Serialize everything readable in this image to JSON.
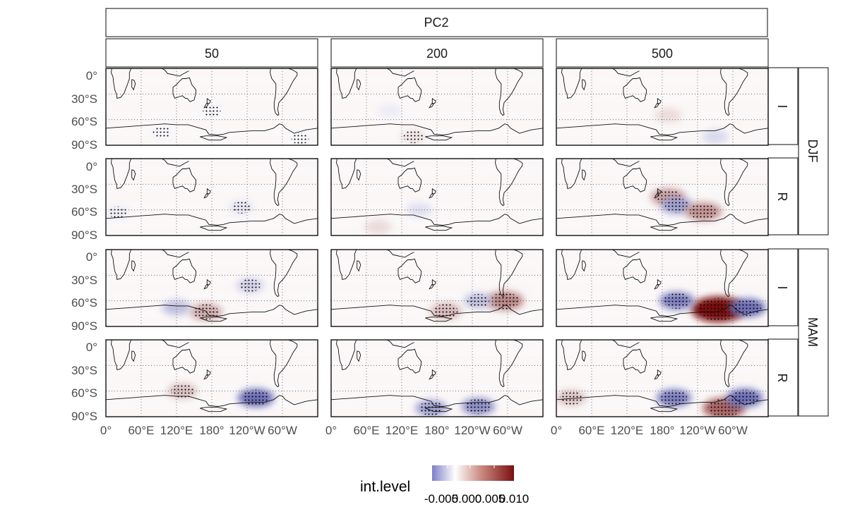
{
  "figure": {
    "title_strip": "PC2",
    "legend_title": "int.level",
    "legend_ticks": [
      "-0.005",
      "0.000",
      "0.005",
      "0.010"
    ],
    "colors": {
      "negative": "#5e5fb0",
      "zero": "#ffffff",
      "positive": "#7a1010",
      "stipple": "#000000",
      "strip_border": "#333333"
    }
  },
  "strips": {
    "columns": [
      "50",
      "200",
      "500"
    ],
    "seasons": [
      "DJF",
      "MAM"
    ],
    "types": [
      "I",
      "R"
    ]
  },
  "axes": {
    "y_ticks": [
      "0°",
      "30°S",
      "60°S",
      "90°S"
    ],
    "x_ticks": [
      "0°",
      "60°E",
      "120°E",
      "180°",
      "120°W",
      "60°W"
    ]
  },
  "chart_data": {
    "type": "heatmap",
    "title": "PC2",
    "legend": "int.level",
    "color_scale": {
      "min": -0.005,
      "max": 0.01,
      "ticks": [
        -0.005,
        0.0,
        0.005,
        0.01
      ],
      "low": "#5e5fb0",
      "mid": "#ffffff",
      "high": "#7a1010"
    },
    "facet_cols": [
      "50",
      "200",
      "500"
    ],
    "facet_rows": [
      {
        "season": "DJF",
        "type": "I"
      },
      {
        "season": "DJF",
        "type": "R"
      },
      {
        "season": "MAM",
        "type": "I"
      },
      {
        "season": "MAM",
        "type": "R"
      }
    ],
    "xlim": [
      0,
      360
    ],
    "ylim": [
      -90,
      0
    ],
    "blobs": [
      {
        "row": 0,
        "col": 0,
        "lon": 95,
        "lat": -75,
        "value": -0.0003,
        "stipple": true
      },
      {
        "row": 0,
        "col": 0,
        "lon": 180,
        "lat": -50,
        "value": -0.0003,
        "stipple": true
      },
      {
        "row": 0,
        "col": 0,
        "lon": 330,
        "lat": -82,
        "value": -0.0003,
        "stipple": true
      },
      {
        "row": 0,
        "col": 1,
        "lon": 140,
        "lat": -80,
        "value": 0.0012,
        "stipple": true
      },
      {
        "row": 0,
        "col": 1,
        "lon": 100,
        "lat": -50,
        "value": -0.0006,
        "stipple": false
      },
      {
        "row": 0,
        "col": 2,
        "lon": 190,
        "lat": -55,
        "value": 0.0015,
        "stipple": false
      },
      {
        "row": 0,
        "col": 2,
        "lon": 270,
        "lat": -80,
        "value": -0.0012,
        "stipple": false
      },
      {
        "row": 1,
        "col": 0,
        "lon": 230,
        "lat": -57,
        "value": -0.0008,
        "stipple": true
      },
      {
        "row": 1,
        "col": 0,
        "lon": 20,
        "lat": -63,
        "value": -0.0006,
        "stipple": true
      },
      {
        "row": 1,
        "col": 1,
        "lon": 150,
        "lat": -60,
        "value": -0.001,
        "stipple": false
      },
      {
        "row": 1,
        "col": 1,
        "lon": 80,
        "lat": -80,
        "value": 0.0015,
        "stipple": false
      },
      {
        "row": 1,
        "col": 2,
        "lon": 190,
        "lat": -45,
        "value": 0.004,
        "stipple": true
      },
      {
        "row": 1,
        "col": 2,
        "lon": 205,
        "lat": -55,
        "value": -0.003,
        "stipple": true
      },
      {
        "row": 1,
        "col": 2,
        "lon": 250,
        "lat": -62,
        "value": 0.0045,
        "stipple": true
      },
      {
        "row": 2,
        "col": 0,
        "lon": 245,
        "lat": -42,
        "value": -0.0015,
        "stipple": true
      },
      {
        "row": 2,
        "col": 0,
        "lon": 170,
        "lat": -73,
        "value": 0.0035,
        "stipple": true
      },
      {
        "row": 2,
        "col": 0,
        "lon": 120,
        "lat": -68,
        "value": -0.002,
        "stipple": false
      },
      {
        "row": 2,
        "col": 1,
        "lon": 295,
        "lat": -60,
        "value": 0.005,
        "stipple": true
      },
      {
        "row": 2,
        "col": 1,
        "lon": 250,
        "lat": -60,
        "value": -0.002,
        "stipple": true
      },
      {
        "row": 2,
        "col": 1,
        "lon": 195,
        "lat": -72,
        "value": 0.003,
        "stipple": true
      },
      {
        "row": 2,
        "col": 2,
        "lon": 275,
        "lat": -70,
        "value": 0.01,
        "stipple": true
      },
      {
        "row": 2,
        "col": 2,
        "lon": 205,
        "lat": -60,
        "value": -0.004,
        "stipple": true
      },
      {
        "row": 2,
        "col": 2,
        "lon": 325,
        "lat": -68,
        "value": -0.0045,
        "stipple": true
      },
      {
        "row": 3,
        "col": 0,
        "lon": 255,
        "lat": -68,
        "value": -0.0045,
        "stipple": true
      },
      {
        "row": 3,
        "col": 0,
        "lon": 130,
        "lat": -60,
        "value": 0.0025,
        "stipple": true
      },
      {
        "row": 3,
        "col": 1,
        "lon": 170,
        "lat": -80,
        "value": -0.003,
        "stipple": true
      },
      {
        "row": 3,
        "col": 1,
        "lon": 250,
        "lat": -78,
        "value": -0.0035,
        "stipple": true
      },
      {
        "row": 3,
        "col": 2,
        "lon": 285,
        "lat": -80,
        "value": 0.0065,
        "stipple": true
      },
      {
        "row": 3,
        "col": 2,
        "lon": 200,
        "lat": -68,
        "value": -0.004,
        "stipple": true
      },
      {
        "row": 3,
        "col": 2,
        "lon": 320,
        "lat": -68,
        "value": -0.0045,
        "stipple": true
      },
      {
        "row": 3,
        "col": 2,
        "lon": 25,
        "lat": -68,
        "value": 0.0025,
        "stipple": true
      }
    ]
  }
}
